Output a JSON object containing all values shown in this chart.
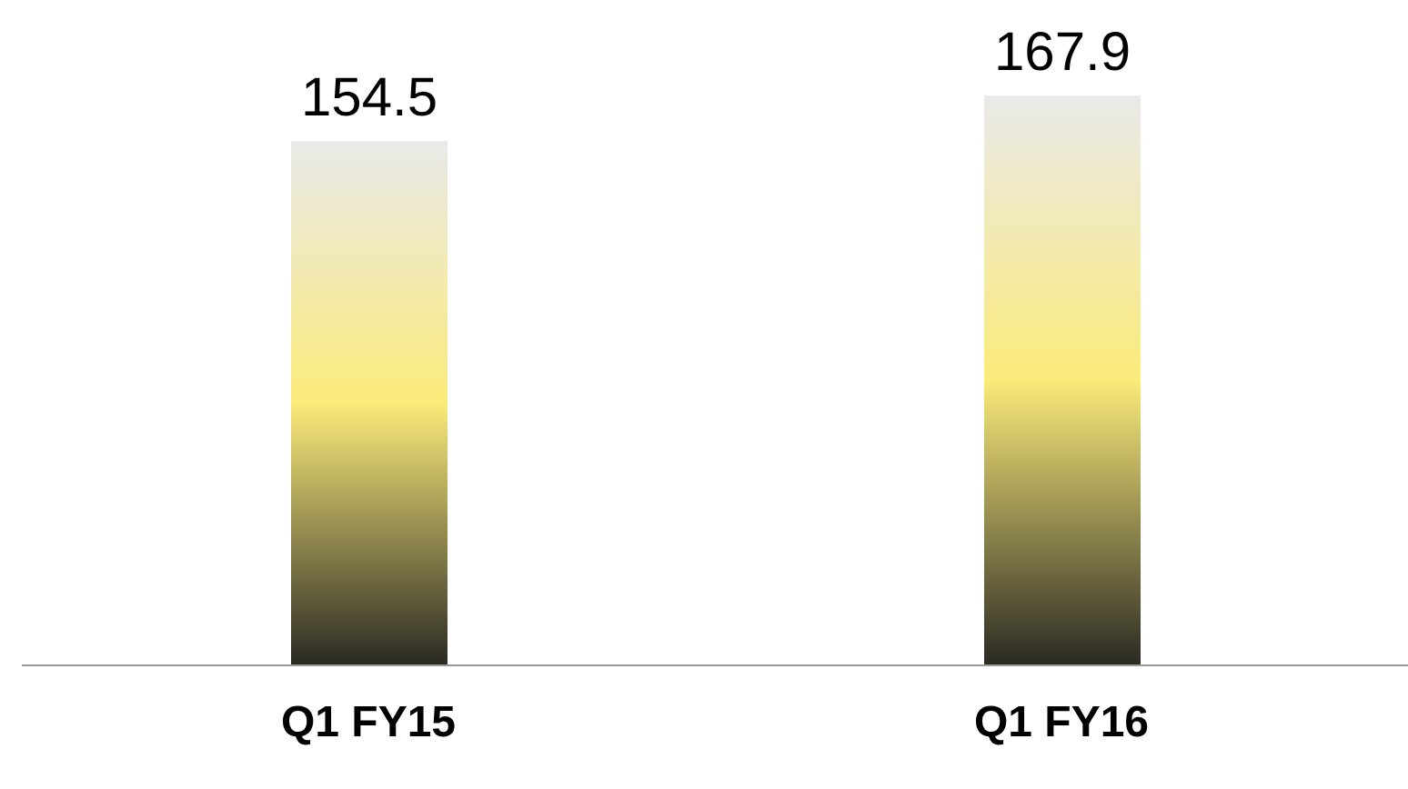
{
  "chart_data": {
    "type": "bar",
    "categories": [
      "Q1 FY15",
      "Q1 FY16"
    ],
    "values": [
      154.5,
      167.9
    ],
    "color": "#fbeb7a",
    "data_labels": true,
    "tick_labels": "x"
  }
}
